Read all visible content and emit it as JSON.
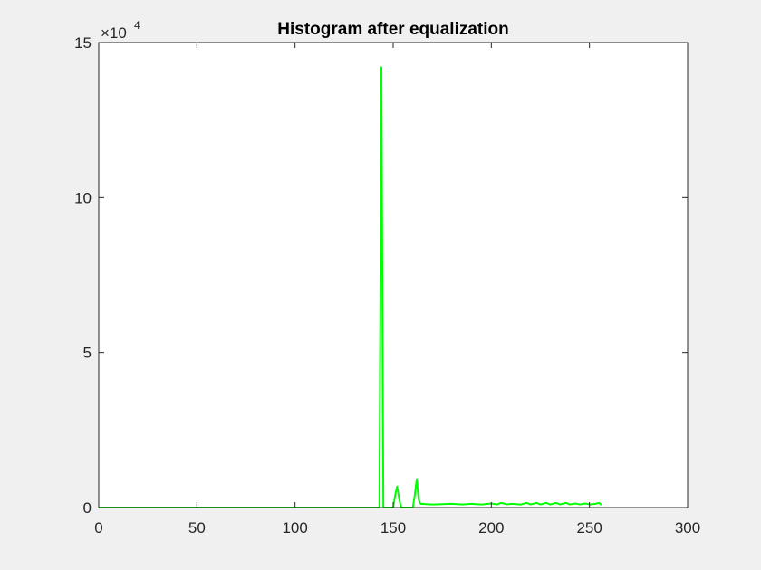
{
  "chart_data": {
    "type": "line",
    "title": "Histogram after equalization",
    "xlabel": "",
    "ylabel": "",
    "xlim": [
      0,
      300
    ],
    "ylim": [
      0,
      15
    ],
    "y_exponent_label": {
      "base": "×10",
      "power": "4"
    },
    "xticks": [
      "0",
      "50",
      "100",
      "150",
      "200",
      "250",
      "300"
    ],
    "yticks": [
      "0",
      "5",
      "10",
      "15"
    ],
    "grid": false,
    "series": [
      {
        "color": "#00ff00",
        "x": [
          0,
          143,
          144,
          145,
          146,
          147,
          150,
          151,
          152,
          153,
          154,
          160,
          161,
          162,
          163,
          164,
          170,
          180,
          185,
          190,
          195,
          200,
          203,
          205,
          208,
          210,
          215,
          218,
          220,
          223,
          225,
          228,
          230,
          233,
          235,
          238,
          240,
          243,
          245,
          248,
          250,
          253,
          255,
          256
        ],
        "y": [
          0,
          0,
          14.2,
          0,
          0,
          0,
          0,
          0.4,
          0.68,
          0.3,
          0,
          0,
          0.4,
          0.92,
          0.25,
          0.12,
          0.1,
          0.12,
          0.1,
          0.12,
          0.1,
          0.13,
          0.1,
          0.15,
          0.1,
          0.12,
          0.1,
          0.15,
          0.1,
          0.15,
          0.1,
          0.15,
          0.1,
          0.15,
          0.1,
          0.15,
          0.1,
          0.13,
          0.1,
          0.13,
          0.1,
          0.12,
          0.15,
          0.08
        ]
      }
    ]
  }
}
